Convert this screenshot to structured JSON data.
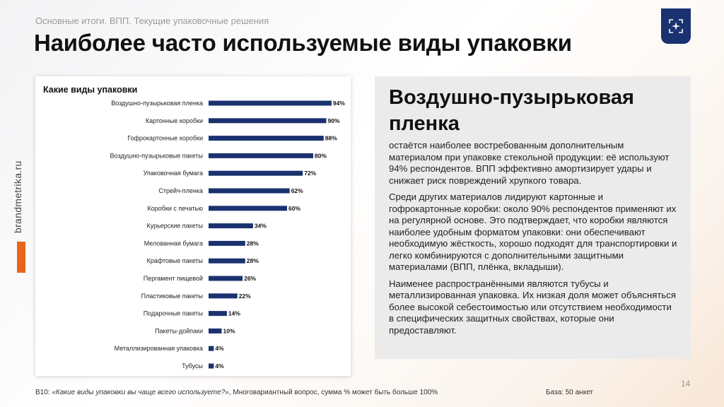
{
  "header": {
    "breadcrumb": "Основные итоги. ВПП. Текущие упаковочные решения",
    "title": "Наиболее часто используемые виды упаковки"
  },
  "side": {
    "brand": "brandmetrika.ru",
    "accent_color": "#e8651e"
  },
  "logo": {
    "icon": "sparkle-frame-icon",
    "color": "#1b3270"
  },
  "chart_data": {
    "type": "bar",
    "orientation": "horizontal",
    "title": "Какие виды упаковки",
    "categories": [
      "Воздушно-пузырьковая пленка",
      "Картонные коробки",
      "Гофрокартонные коробки",
      "Воздушно-пузырьковые пакеты",
      "Упаковочная бумага",
      "Стрейч-пленка",
      "Коробки с печатью",
      "Курьерские пакеты",
      "Мелованная бумага",
      "Крафтовые пакеты",
      "Пергамент пищевой",
      "Пластиковые пакеты",
      "Подарочные пакеты",
      "Пакеты-дойпаки",
      "Металлизированная упаковка",
      "Тубусы"
    ],
    "values": [
      94,
      90,
      88,
      80,
      72,
      62,
      60,
      34,
      28,
      28,
      26,
      22,
      14,
      10,
      4,
      4
    ],
    "value_suffix": "%",
    "xlim": [
      0,
      100
    ],
    "bar_color": "#1b3270",
    "grid": false,
    "legend": "none"
  },
  "panel": {
    "heading": "Воздушно-пузырьковая пленка",
    "paragraphs": [
      "остаётся наиболее востребованным дополнительным материалом при упаковке стекольной продукции: её используют 94% респондентов. ВПП эффективно амортизирует удары и снижает риск повреждений хрупкого товара.",
      "Среди других материалов лидируют картонные и гофрокартонные  коробки: около 90% респондентов применяют их на регулярной основе. Это подтверждает, что коробки являются наиболее удобным форматом упаковки: они обеспечивают необходимую жёсткость, хорошо подходят для транспортировки и легко комбинируются с дополнительными защитными материалами (ВПП, плёнка, вкладыши).",
      "Наименее распространёнными являются тубусы и металлизированная упаковка. Их низкая доля может объясняться более высокой себестоимостью или отсутствием необходимости в специфических защитных свойствах, которые они предоставляют."
    ]
  },
  "footer": {
    "page_number": "14",
    "question_code": "B10: ",
    "question_text": "«Какие виды упаковки вы чаще всего используете?»",
    "question_note": ", Многовариантный вопрос, сумма % может быть больше 100%",
    "base": "База: 50 анкет"
  }
}
